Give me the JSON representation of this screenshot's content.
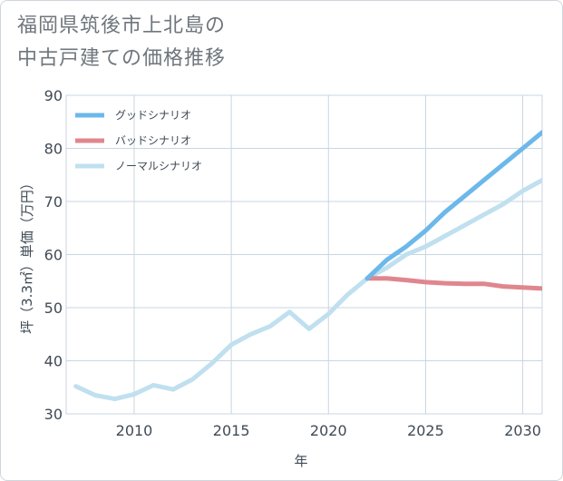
{
  "title": {
    "line1": "福岡県筑後市上北島の",
    "line2": "中古戸建ての価格推移"
  },
  "colors": {
    "good": "#6cb8ea",
    "bad": "#e0868e",
    "normal": "#c0e0ef",
    "grid": "#c8d6e0",
    "axis_text": "#3f4a55"
  },
  "chart_data": {
    "type": "line",
    "xlabel": "年",
    "ylabel": "坪（3.3㎡）単価（万円）",
    "xlim": [
      2006.5,
      2031
    ],
    "ylim": [
      30,
      90
    ],
    "x_ticks": [
      2010,
      2015,
      2020,
      2025,
      2030
    ],
    "y_ticks": [
      30,
      40,
      50,
      60,
      70,
      80,
      90
    ],
    "grid": true,
    "legend_position": "top-left",
    "series": [
      {
        "name": "グッドシナリオ",
        "color": "#6cb8ea",
        "x": [
          2022,
          2023,
          2024,
          2025,
          2026,
          2027,
          2028,
          2029,
          2030,
          2031
        ],
        "values": [
          55.5,
          59.0,
          61.5,
          64.5,
          68.0,
          71.0,
          74.0,
          77.0,
          80.0,
          83.0
        ]
      },
      {
        "name": "バッドシナリオ",
        "color": "#e0868e",
        "x": [
          2022,
          2023,
          2024,
          2025,
          2026,
          2027,
          2028,
          2029,
          2030,
          2031
        ],
        "values": [
          55.5,
          55.5,
          55.2,
          54.8,
          54.6,
          54.5,
          54.5,
          54.0,
          53.8,
          53.6
        ]
      },
      {
        "name": "ノーマルシナリオ",
        "color": "#c0e0ef",
        "x": [
          2007,
          2008,
          2009,
          2010,
          2011,
          2012,
          2013,
          2014,
          2015,
          2016,
          2017,
          2018,
          2019,
          2020,
          2021,
          2022,
          2023,
          2024,
          2025,
          2026,
          2027,
          2028,
          2029,
          2030,
          2031
        ],
        "values": [
          35.2,
          33.5,
          32.8,
          33.7,
          35.4,
          34.6,
          36.5,
          39.5,
          43.0,
          45.0,
          46.5,
          49.2,
          46.0,
          48.8,
          52.5,
          55.5,
          57.5,
          60.0,
          61.5,
          63.5,
          65.5,
          67.5,
          69.5,
          72.0,
          74.0
        ]
      }
    ]
  }
}
